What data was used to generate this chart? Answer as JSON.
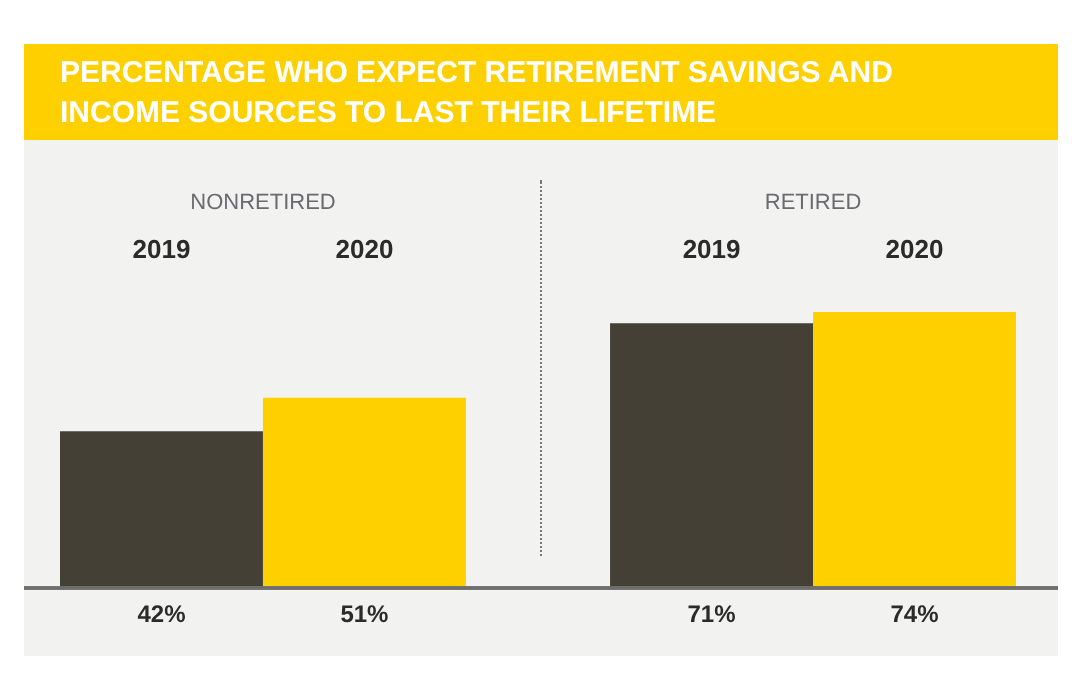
{
  "chart_data": {
    "type": "bar",
    "title": "PERCENTAGE WHO EXPECT RETIREMENT SAVINGS AND INCOME SOURCES TO LAST THEIR LIFETIME",
    "categories": [
      "NONRETIRED",
      "RETIRED"
    ],
    "series": [
      {
        "name": "2019",
        "color": "#454035",
        "values": [
          42,
          71
        ],
        "value_labels": [
          "42%",
          "71%"
        ]
      },
      {
        "name": "2020",
        "color": "#ffd000",
        "values": [
          51,
          74
        ],
        "value_labels": [
          "51%",
          "74%"
        ]
      }
    ],
    "tick_labels": "x"
  }
}
